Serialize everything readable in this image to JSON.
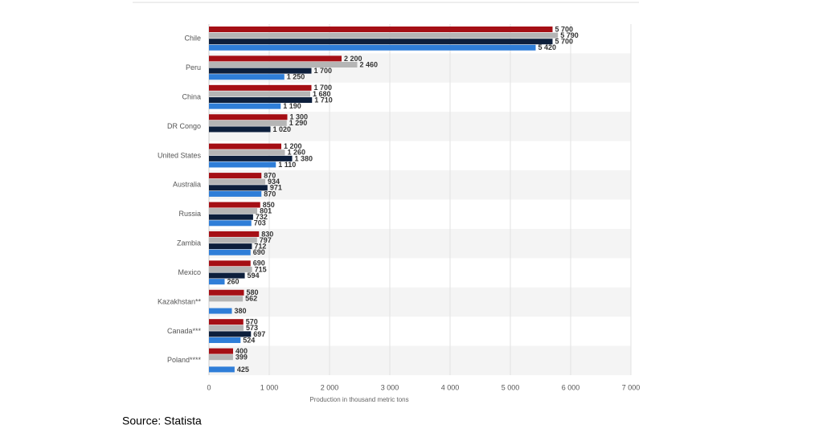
{
  "chart_data": {
    "type": "hbar",
    "categories": [
      "Chile",
      "Peru",
      "China",
      "DR Congo",
      "United States",
      "Australia",
      "Russia",
      "Zambia",
      "Mexico",
      "Kazakhstan**",
      "Canada***",
      "Poland****"
    ],
    "series": [
      {
        "color": "#a50f15",
        "values": [
          5700,
          2200,
          1700,
          1300,
          1200,
          870,
          850,
          830,
          690,
          580,
          570,
          400
        ],
        "value_labels": [
          "5 700",
          "2 200",
          "1 700",
          "1 300",
          "1 200",
          "870",
          "850",
          "830",
          "690",
          "580",
          "570",
          "400"
        ]
      },
      {
        "color": "#b5b5b5",
        "values": [
          5790,
          2460,
          1680,
          1290,
          1260,
          934,
          801,
          797,
          715,
          562,
          573,
          399
        ],
        "value_labels": [
          "5 790",
          "2 460",
          "1 680",
          "1 290",
          "1 260",
          "934",
          "801",
          "797",
          "715",
          "562",
          "573",
          "399"
        ]
      },
      {
        "color": "#0d1f3c",
        "values": [
          5700,
          1700,
          1710,
          1020,
          1380,
          971,
          732,
          712,
          594,
          null,
          697,
          null
        ],
        "value_labels": [
          "5 700",
          "1 700",
          "1 710",
          "1 020",
          "1 380",
          "971",
          "732",
          "712",
          "594",
          null,
          "697",
          null
        ]
      },
      {
        "color": "#2f7ed8",
        "values": [
          5420,
          1250,
          1190,
          null,
          1110,
          870,
          703,
          690,
          260,
          380,
          524,
          425
        ],
        "value_labels": [
          "5 420",
          "1 250",
          "1 190",
          null,
          "1 110",
          "870",
          "703",
          "690",
          "260",
          "380",
          "524",
          "425"
        ]
      }
    ],
    "xlim": [
      0,
      7000
    ],
    "xticks": [
      0,
      {
        "value": 1000,
        "label": "1 000"
      },
      {
        "value": 2000,
        "label": "2 000"
      },
      {
        "value": 3000,
        "label": "3 000"
      },
      {
        "value": 4000,
        "label": "4 000"
      },
      {
        "value": 5000,
        "label": "5 000"
      },
      {
        "value": 6000,
        "label": "6 000"
      },
      {
        "value": 7000,
        "label": "7 000"
      }
    ],
    "xlabel": "Production in thousand metric tons",
    "grid": true,
    "source": "Source: Statista"
  }
}
